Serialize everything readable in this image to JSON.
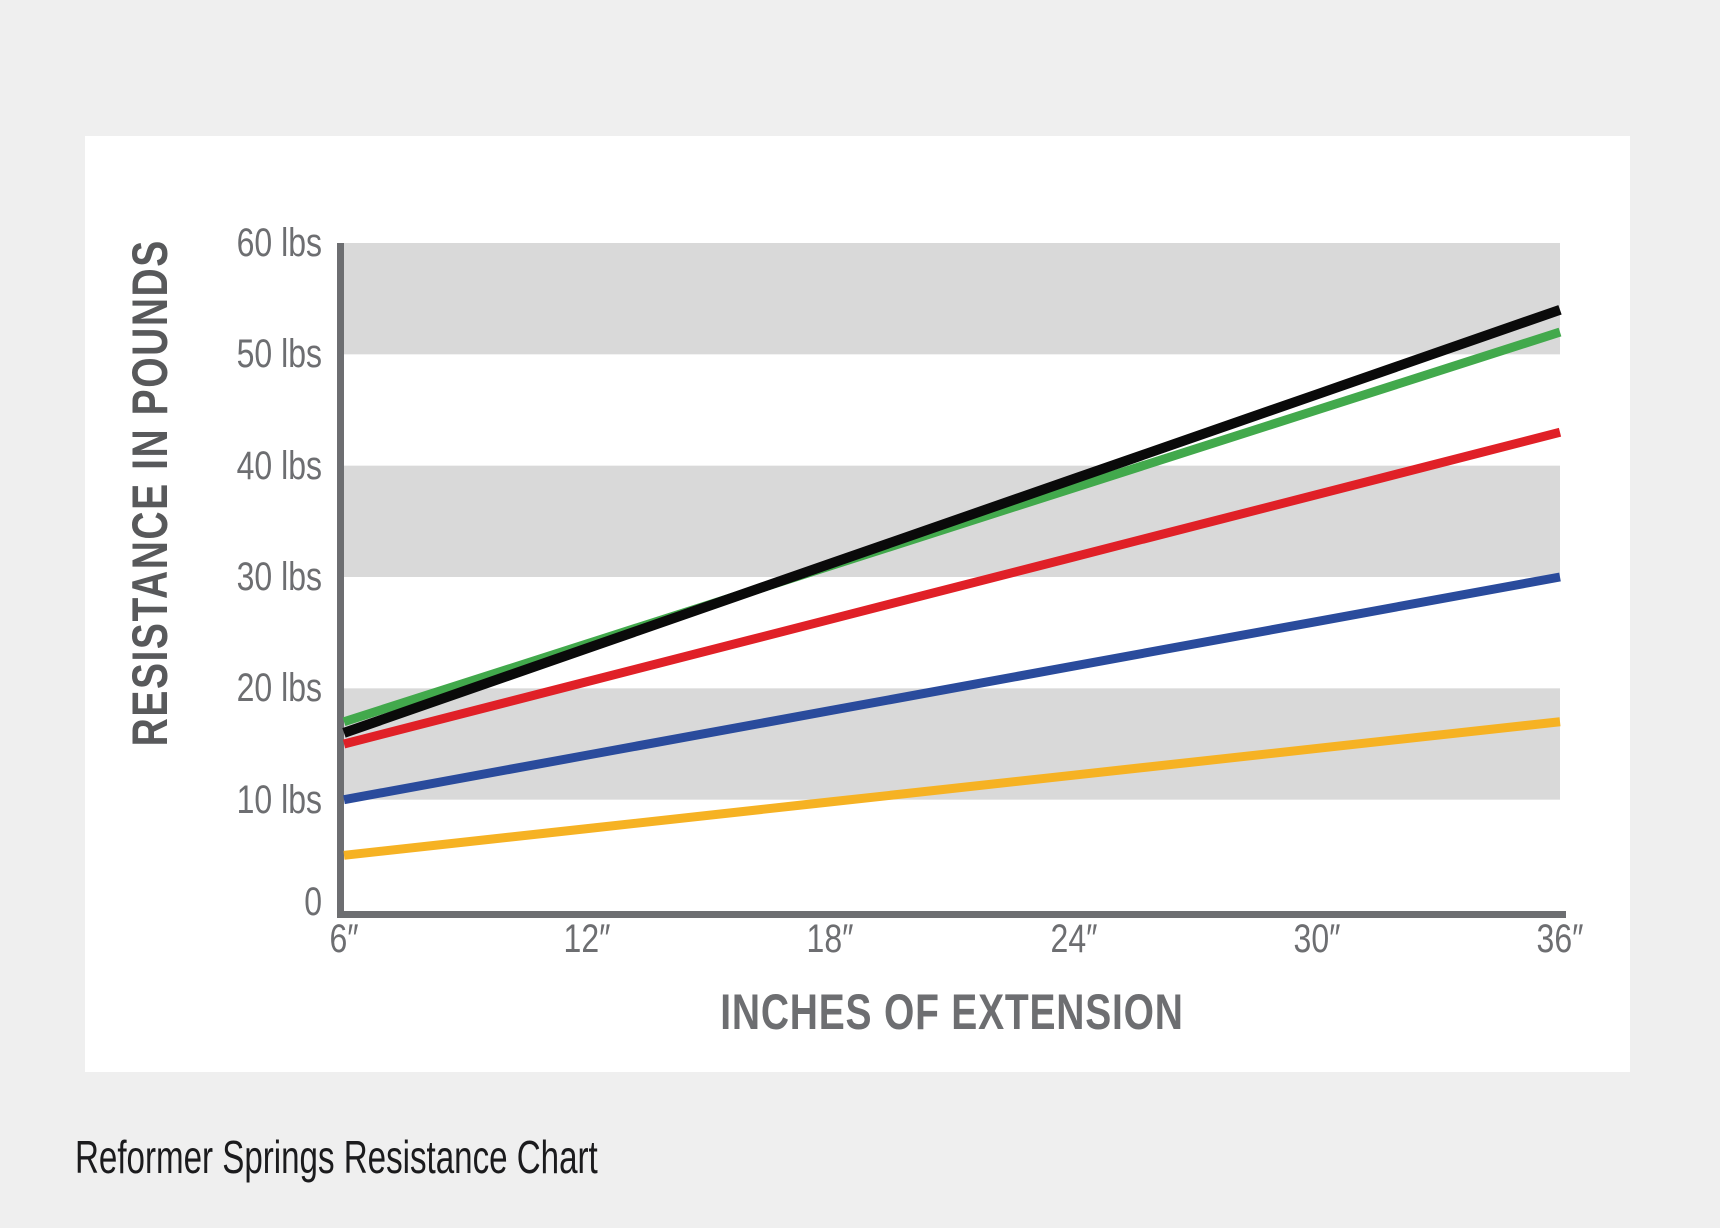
{
  "page": {
    "caption": "Reformer Springs Resistance Chart",
    "background": "#efefef",
    "card_background": "#ffffff"
  },
  "chart_data": {
    "type": "line",
    "title": "",
    "xlabel": "INCHES OF EXTENSION",
    "ylabel": "RESISTANCE IN POUNDS",
    "x": [
      6,
      12,
      18,
      24,
      30,
      36
    ],
    "xtick_labels": [
      "6″",
      "12″",
      "18″",
      "24″",
      "30″",
      "36″"
    ],
    "ytick_values": [
      0,
      10,
      20,
      30,
      40,
      50,
      60
    ],
    "ytick_labels": [
      "0",
      "10 lbs",
      "20 lbs",
      "30 lbs",
      "40 lbs",
      "50 lbs",
      "60 lbs"
    ],
    "xlim": [
      6,
      36
    ],
    "ylim": [
      0,
      60
    ],
    "grid_bands": [
      [
        10,
        20
      ],
      [
        30,
        40
      ],
      [
        50,
        60
      ]
    ],
    "grid": "horizontal-bands",
    "legend": "none",
    "band_color": "#d9d9d9",
    "axis_color": "#6d6e71",
    "series": [
      {
        "name": "yellow-spring",
        "color": "#f6b223",
        "values": [
          5,
          7.4,
          9.8,
          12.2,
          14.6,
          17
        ]
      },
      {
        "name": "blue-spring",
        "color": "#2a4b9c",
        "values": [
          10,
          14,
          18,
          22,
          26,
          30
        ]
      },
      {
        "name": "red-spring",
        "color": "#e02027",
        "values": [
          15,
          20.6,
          26.2,
          31.8,
          37.4,
          43
        ]
      },
      {
        "name": "green-spring",
        "color": "#42a94c",
        "values": [
          17,
          24,
          31,
          38,
          45,
          52
        ]
      },
      {
        "name": "black-spring",
        "color": "#0a0a0a",
        "values": [
          16,
          23.6,
          31.2,
          38.8,
          46.4,
          54
        ]
      }
    ]
  }
}
